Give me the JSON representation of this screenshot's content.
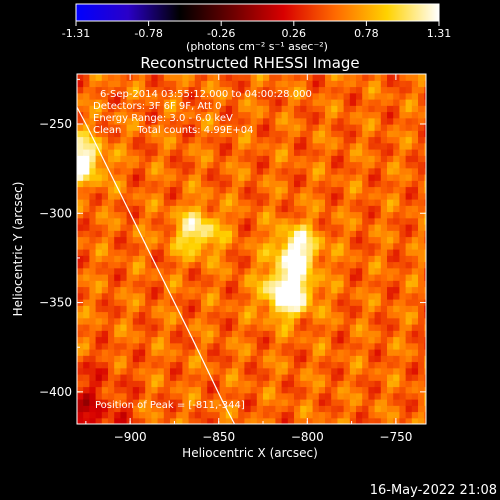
{
  "chart_data": {
    "type": "heatmap",
    "title": "Reconstructed RHESSI Image",
    "xlabel": "Heliocentric X (arcsec)",
    "ylabel": "Heliocentric Y (arcsec)",
    "xlim": [
      -930,
      -733
    ],
    "ylim": [
      -418,
      -222
    ],
    "x_ticks": [
      -900,
      -850,
      -800,
      -750
    ],
    "y_ticks": [
      -250,
      -300,
      -350,
      -400
    ],
    "colorbar": {
      "min": -1.31,
      "max": 1.31,
      "ticks": [
        "-1.31",
        "-0.78",
        "-0.26",
        "0.26",
        "0.78",
        "1.31"
      ],
      "unit_label": "(photons cm⁻² s⁻¹ asec⁻²)",
      "colormap": [
        "#0000ff",
        "#2a00c8",
        "#000000",
        "#6a0000",
        "#d80000",
        "#ff6a00",
        "#ffd200",
        "#ffffff"
      ]
    },
    "sources": [
      {
        "x": -811,
        "y": -344,
        "intensity": 1.31
      },
      {
        "x": -806,
        "y": -320,
        "intensity": 1.0
      },
      {
        "x": -862,
        "y": -310,
        "intensity": 0.85
      },
      {
        "x": -928,
        "y": -270,
        "intensity": 1.05
      }
    ],
    "background_level": 0.55,
    "limb": true
  },
  "annotations": {
    "time_range": "6-Sep-2014 03:55:12.000 to 04:00:28.000",
    "detectors": "Detectors: 3F 6F 9F, Att 0",
    "energy": "Energy Range: 3.0 - 6.0 keV",
    "method": "Clean     Total counts: 4.99E+04",
    "peak": "Position of Peak = [-811,-344]"
  },
  "footer_date": "16-May-2022 21:08"
}
